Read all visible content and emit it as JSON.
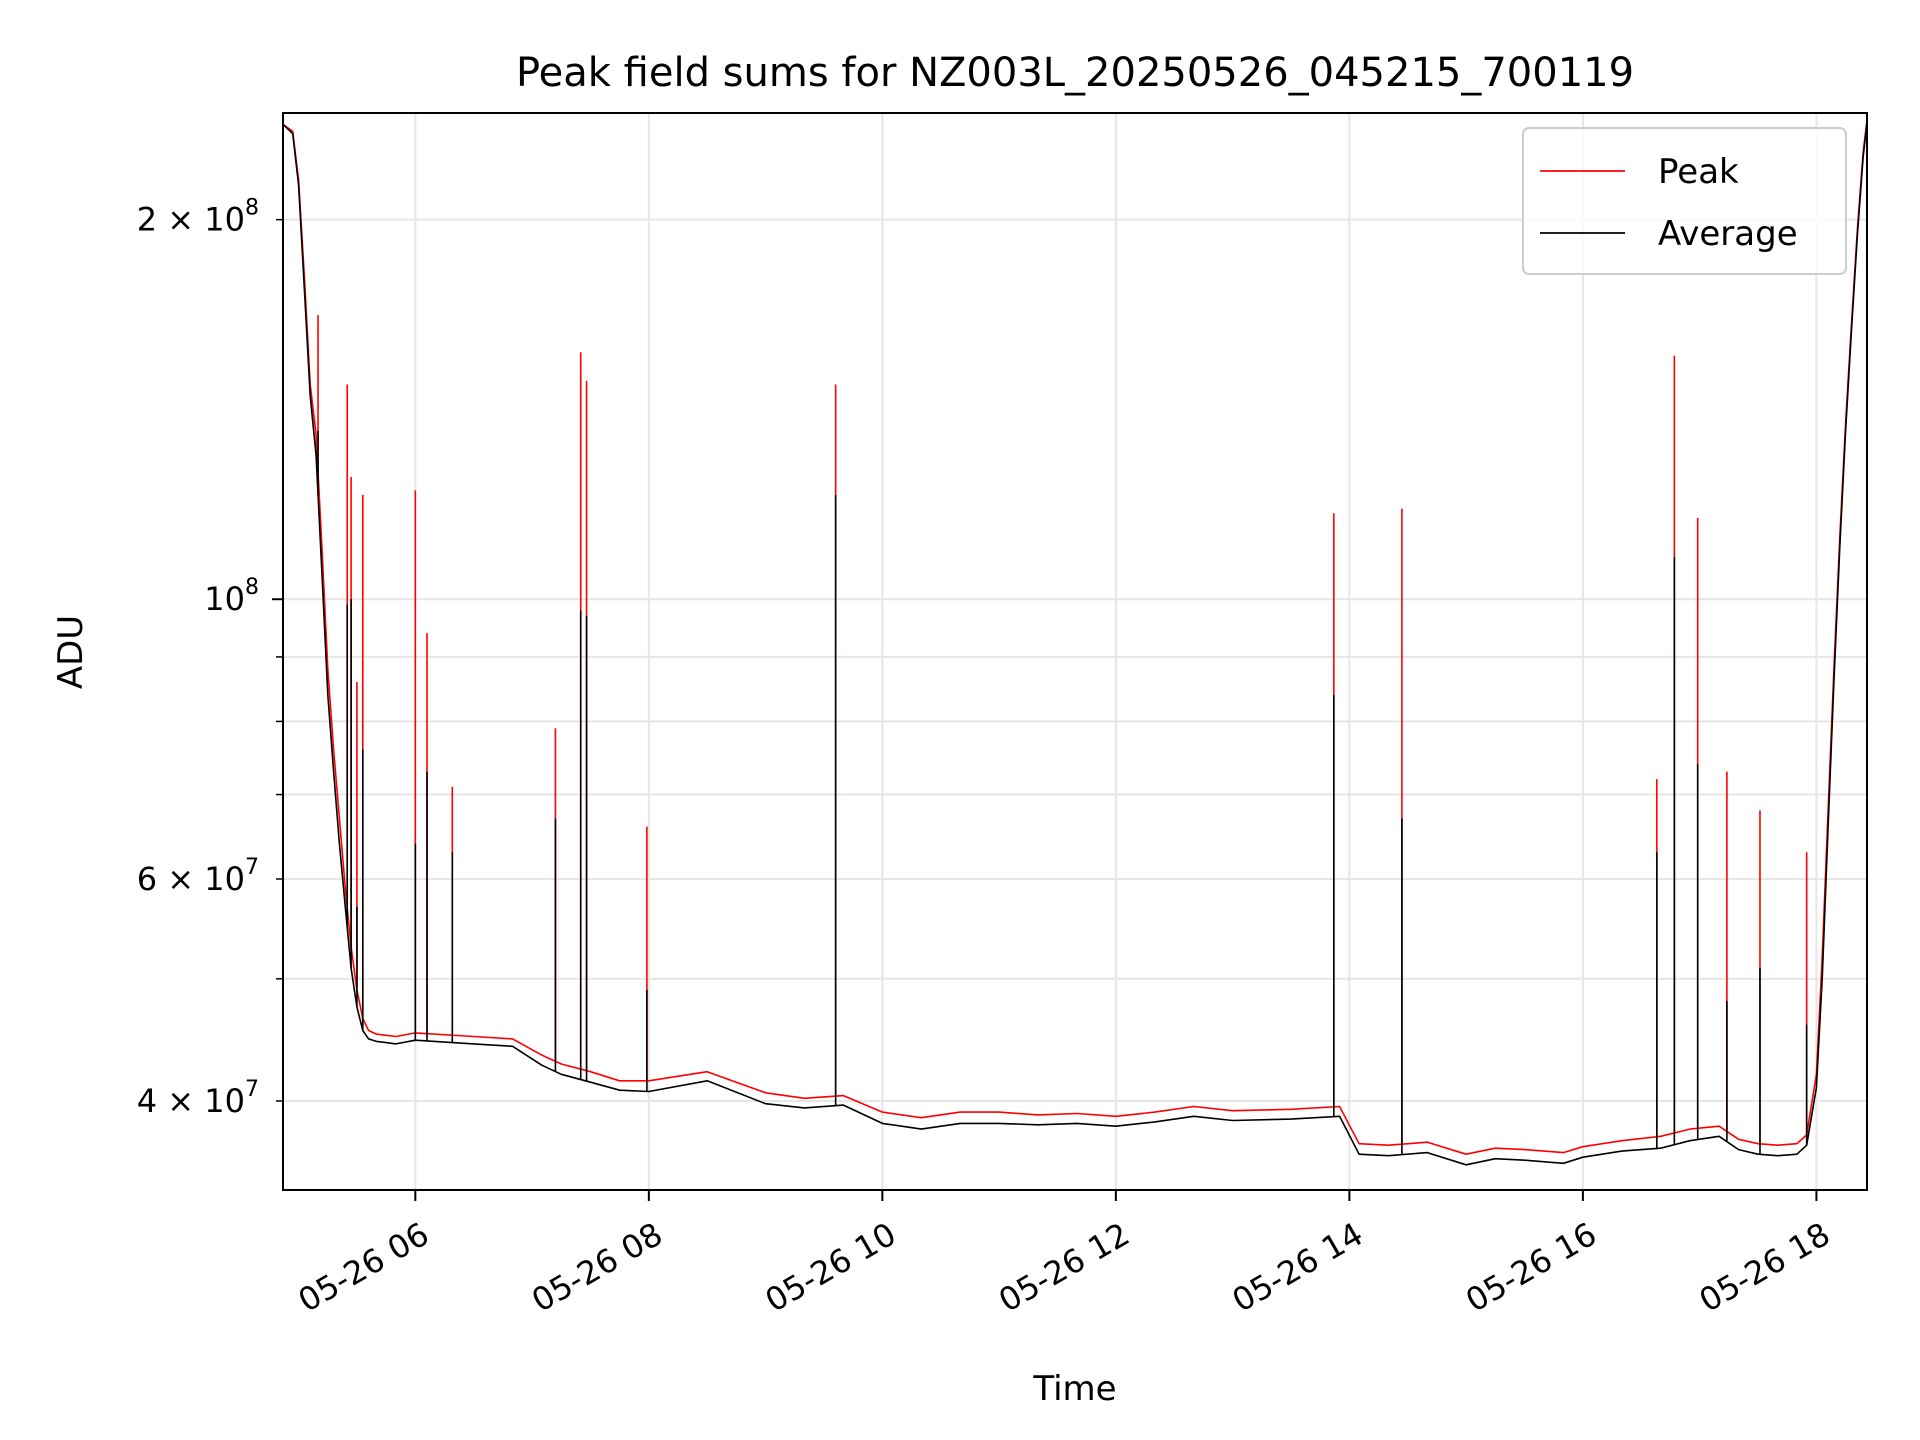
{
  "chart_data": {
    "type": "line",
    "title": "Peak field sums for NZ003L_20250526_045215_700119",
    "xlabel": "Time",
    "ylabel": "ADU",
    "yscale": "log",
    "xlim": [
      "2025-05-26 04:52",
      "2025-05-26 18:26"
    ],
    "ylim": [
      34000000,
      243000000
    ],
    "x_ticks": [
      {
        "value": "2025-05-26 06:00",
        "label": "05-26 06"
      },
      {
        "value": "2025-05-26 08:00",
        "label": "05-26 08"
      },
      {
        "value": "2025-05-26 10:00",
        "label": "05-26 10"
      },
      {
        "value": "2025-05-26 12:00",
        "label": "05-26 12"
      },
      {
        "value": "2025-05-26 14:00",
        "label": "05-26 14"
      },
      {
        "value": "2025-05-26 16:00",
        "label": "05-26 16"
      },
      {
        "value": "2025-05-26 18:00",
        "label": "05-26 18"
      }
    ],
    "y_major_ticks": [
      {
        "value": 100000000,
        "base": "10",
        "exp": "8"
      }
    ],
    "y_minor_labeled_ticks": [
      {
        "value": 40000000,
        "mant": "4",
        "exp": "7"
      },
      {
        "value": 60000000,
        "mant": "6",
        "exp": "7"
      },
      {
        "value": 200000000,
        "mant": "2",
        "exp": "8"
      }
    ],
    "y_minor_unlabeled_ticks": [
      50000000,
      70000000,
      80000000,
      90000000
    ],
    "grid": true,
    "legend_position": "top-right",
    "series": [
      {
        "name": "Peak",
        "color": "#ff0000",
        "x": [
          "04:52",
          "04:57",
          "05:00",
          "05:03",
          "05:06",
          "05:09",
          "05:12",
          "05:15",
          "05:18",
          "05:21",
          "05:24",
          "05:27",
          "05:30",
          "05:33",
          "05:36",
          "05:40",
          "05:45",
          "05:50",
          "06:00",
          "06:30",
          "06:50",
          "07:05",
          "07:15",
          "07:30",
          "07:45",
          "08:00",
          "08:30",
          "09:00",
          "09:20",
          "09:40",
          "10:00",
          "10:20",
          "10:40",
          "11:00",
          "11:20",
          "11:40",
          "12:00",
          "12:20",
          "12:40",
          "13:00",
          "13:30",
          "13:55",
          "14:05",
          "14:20",
          "14:40",
          "15:00",
          "15:15",
          "15:30",
          "15:50",
          "16:00",
          "16:20",
          "16:40",
          "16:55",
          "17:10",
          "17:20",
          "17:30",
          "17:40",
          "17:50",
          "17:55",
          "18:00",
          "18:03",
          "18:06",
          "18:09",
          "18:12",
          "18:15",
          "18:18",
          "18:21",
          "18:24",
          "18:26"
        ],
        "values": [
          238000000,
          235000000,
          215000000,
          180000000,
          148000000,
          135000000,
          110000000,
          88000000,
          76000000,
          67000000,
          59000000,
          53000000,
          49000000,
          46500000,
          45500000,
          45200000,
          45100000,
          45000000,
          45300000,
          45000000,
          44800000,
          43500000,
          42800000,
          42200000,
          41500000,
          41500000,
          42200000,
          40600000,
          40200000,
          40400000,
          39200000,
          38800000,
          39200000,
          39200000,
          39000000,
          39100000,
          38900000,
          39200000,
          39600000,
          39300000,
          39400000,
          39600000,
          37000000,
          36900000,
          37100000,
          36300000,
          36700000,
          36600000,
          36400000,
          36800000,
          37200000,
          37500000,
          38000000,
          38200000,
          37300000,
          37000000,
          36900000,
          37000000,
          37600000,
          42000000,
          52000000,
          68000000,
          88000000,
          112000000,
          138000000,
          165000000,
          196000000,
          226000000,
          240000000
        ],
        "spikes": [
          {
            "x": "05:10",
            "value": 168000000
          },
          {
            "x": "05:25",
            "value": 148000000
          },
          {
            "x": "05:27",
            "value": 125000000
          },
          {
            "x": "05:30",
            "value": 86000000
          },
          {
            "x": "05:33",
            "value": 121000000
          },
          {
            "x": "06:00",
            "value": 122000000
          },
          {
            "x": "06:06",
            "value": 94000000
          },
          {
            "x": "06:19",
            "value": 71000000
          },
          {
            "x": "07:12",
            "value": 79000000
          },
          {
            "x": "07:25",
            "value": 157000000
          },
          {
            "x": "07:28",
            "value": 149000000
          },
          {
            "x": "07:59",
            "value": 66000000
          },
          {
            "x": "09:36",
            "value": 148000000
          },
          {
            "x": "13:52",
            "value": 117000000
          },
          {
            "x": "14:27",
            "value": 118000000
          },
          {
            "x": "16:38",
            "value": 72000000
          },
          {
            "x": "16:47",
            "value": 156000000
          },
          {
            "x": "16:59",
            "value": 116000000
          },
          {
            "x": "17:14",
            "value": 73000000
          },
          {
            "x": "17:31",
            "value": 68000000
          },
          {
            "x": "17:55",
            "value": 63000000
          }
        ]
      },
      {
        "name": "Average",
        "color": "#000000",
        "x": [
          "04:52",
          "04:57",
          "05:00",
          "05:03",
          "05:06",
          "05:09",
          "05:12",
          "05:15",
          "05:18",
          "05:21",
          "05:24",
          "05:27",
          "05:30",
          "05:33",
          "05:36",
          "05:40",
          "05:45",
          "05:50",
          "06:00",
          "06:30",
          "06:50",
          "07:05",
          "07:15",
          "07:30",
          "07:45",
          "08:00",
          "08:30",
          "09:00",
          "09:20",
          "09:40",
          "10:00",
          "10:20",
          "10:40",
          "11:00",
          "11:20",
          "11:40",
          "12:00",
          "12:20",
          "12:40",
          "13:00",
          "13:30",
          "13:55",
          "14:05",
          "14:20",
          "14:40",
          "15:00",
          "15:15",
          "15:30",
          "15:50",
          "16:00",
          "16:20",
          "16:40",
          "16:55",
          "17:10",
          "17:20",
          "17:30",
          "17:40",
          "17:50",
          "17:55",
          "18:00",
          "18:03",
          "18:06",
          "18:09",
          "18:12",
          "18:15",
          "18:18",
          "18:21",
          "18:24",
          "18:26"
        ],
        "values": [
          238000000,
          234000000,
          213000000,
          176000000,
          145000000,
          130000000,
          105000000,
          84000000,
          73000000,
          64000000,
          57000000,
          51000000,
          47500000,
          45500000,
          44800000,
          44600000,
          44500000,
          44400000,
          44700000,
          44400000,
          44200000,
          42700000,
          42000000,
          41400000,
          40800000,
          40700000,
          41500000,
          39800000,
          39500000,
          39700000,
          38400000,
          38000000,
          38400000,
          38400000,
          38300000,
          38400000,
          38200000,
          38500000,
          38900000,
          38600000,
          38700000,
          38900000,
          36300000,
          36200000,
          36400000,
          35600000,
          36000000,
          35900000,
          35700000,
          36100000,
          36500000,
          36700000,
          37200000,
          37500000,
          36600000,
          36300000,
          36200000,
          36300000,
          36900000,
          41000000,
          50000000,
          66000000,
          86000000,
          110000000,
          136000000,
          163000000,
          194000000,
          224000000,
          239000000
        ],
        "spikes": [
          {
            "x": "05:10",
            "value": 136000000
          },
          {
            "x": "05:25",
            "value": 99000000
          },
          {
            "x": "05:27",
            "value": 100000000
          },
          {
            "x": "05:30",
            "value": 57000000
          },
          {
            "x": "05:33",
            "value": 76000000
          },
          {
            "x": "06:00",
            "value": 64000000
          },
          {
            "x": "06:06",
            "value": 73000000
          },
          {
            "x": "06:19",
            "value": 63000000
          },
          {
            "x": "07:12",
            "value": 67000000
          },
          {
            "x": "07:25",
            "value": 98000000
          },
          {
            "x": "07:28",
            "value": 97000000
          },
          {
            "x": "07:59",
            "value": 49000000
          },
          {
            "x": "09:36",
            "value": 121000000
          },
          {
            "x": "13:52",
            "value": 84000000
          },
          {
            "x": "14:27",
            "value": 67000000
          },
          {
            "x": "16:38",
            "value": 63000000
          },
          {
            "x": "16:47",
            "value": 108000000
          },
          {
            "x": "16:59",
            "value": 74000000
          },
          {
            "x": "17:14",
            "value": 48000000
          },
          {
            "x": "17:31",
            "value": 51000000
          },
          {
            "x": "17:55",
            "value": 46000000
          }
        ]
      }
    ]
  }
}
